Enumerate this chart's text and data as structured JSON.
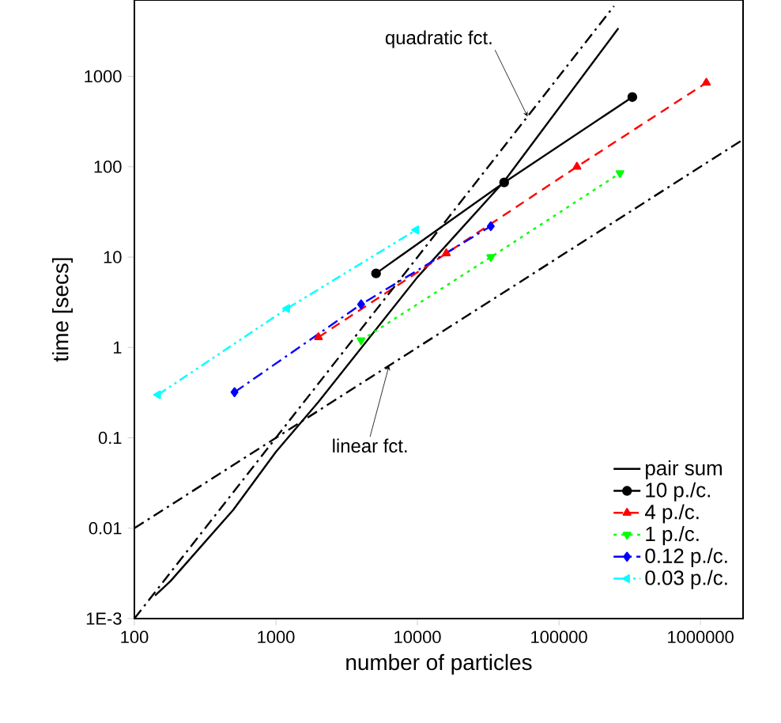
{
  "chart_data": {
    "type": "line",
    "xlabel": "number of particles",
    "ylabel": "time [secs]",
    "log": "xy",
    "xlim": [
      100,
      2000000
    ],
    "ylim": [
      0.001,
      7000
    ],
    "xticks": [
      100,
      1000,
      10000,
      100000,
      1000000
    ],
    "yticks": [
      {
        "value": 0.001,
        "label": "1E-3"
      },
      {
        "value": 0.01,
        "label": "0.01"
      },
      {
        "value": 0.1,
        "label": "0.1"
      },
      1,
      10,
      100,
      1000
    ],
    "grid": false,
    "legend": "bottom right",
    "series": [
      {
        "name": "pair sum",
        "color": "#000000",
        "marker": "none",
        "line_style": "solid",
        "x": [
          140,
          180,
          500,
          1000,
          2000,
          10000,
          41000,
          263000
        ],
        "values": [
          0.0018,
          0.0026,
          0.016,
          0.07,
          0.25,
          6,
          69,
          3400
        ]
      },
      {
        "name": "10 p./c.",
        "color": "#000000",
        "marker": "circle",
        "line_style": "solid",
        "x": [
          5100,
          41000,
          330000
        ],
        "values": [
          6.6,
          67,
          590
        ]
      },
      {
        "name": "4 p./c.",
        "color": "#ff0000",
        "marker": "triangle",
        "line_style": "dashed",
        "x": [
          2000,
          16000,
          134000,
          1100000
        ],
        "values": [
          1.3,
          11,
          100,
          850
        ]
      },
      {
        "name": "1 p./c.",
        "color": "#00ff00",
        "marker": "triangle-down",
        "line_style": "dotted",
        "x": [
          4000,
          33000,
          270000
        ],
        "values": [
          1.2,
          10,
          85
        ]
      },
      {
        "name": "0.12 p./c.",
        "color": "#0000ff",
        "marker": "diamond",
        "line_style": "dashdot",
        "x": [
          510,
          4000,
          33000
        ],
        "values": [
          0.32,
          3.0,
          22
        ]
      },
      {
        "name": "0.03 p./c.",
        "color": "#00ffff",
        "marker": "triangle-left",
        "line_style": "dashdotdot",
        "x": [
          147,
          1200,
          9800
        ],
        "values": [
          0.3,
          2.7,
          20
        ]
      },
      {
        "color": "#000000",
        "marker": "none",
        "line_style": "dashdot",
        "x": [
          100,
          2000000
        ],
        "values": [
          0.01,
          200
        ]
      },
      {
        "color": "#000000",
        "marker": "none",
        "line_style": "dashdot",
        "x": [
          100,
          245000
        ],
        "values": [
          0.001,
          6000
        ]
      }
    ],
    "annotations": [
      {
        "text": "quadratic fct.",
        "x": 60000,
        "y": 360
      },
      {
        "text": "linear fct.",
        "x": 6300,
        "y": 0.63
      }
    ]
  }
}
